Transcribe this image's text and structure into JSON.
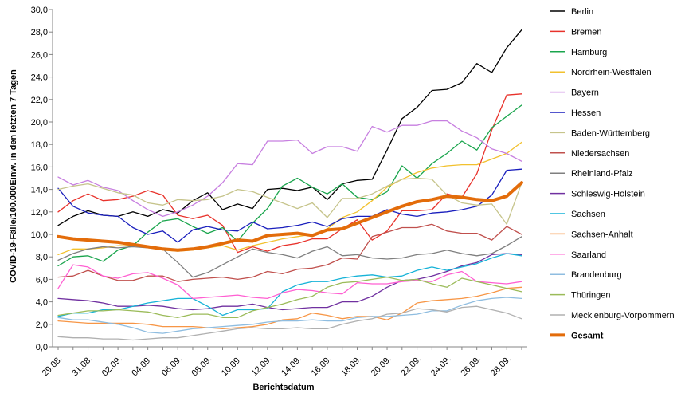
{
  "chart_data": {
    "type": "line",
    "title": "",
    "xlabel": "Berichtsdatum",
    "ylabel": "COVID-19-Fälle/100.000Einw. in den letzten 7 Tagen",
    "ylim": [
      0,
      30
    ],
    "ytick_step": 2,
    "ytick_labels": [
      "0,0",
      "2,0",
      "4,0",
      "6,0",
      "8,0",
      "10,0",
      "12,0",
      "14,0",
      "16,0",
      "18,0",
      "20,0",
      "22,0",
      "24,0",
      "26,0",
      "28,0",
      "30,0"
    ],
    "grid": false,
    "legend_position": "right",
    "categories": [
      "29.08.",
      "30.08.",
      "31.08.",
      "01.09.",
      "02.09.",
      "03.09.",
      "04.09.",
      "05.09.",
      "06.09.",
      "07.09.",
      "08.09.",
      "09.09.",
      "10.09.",
      "11.09.",
      "12.09.",
      "13.09.",
      "14.09.",
      "15.09.",
      "16.09.",
      "17.09.",
      "18.09.",
      "19.09.",
      "20.09.",
      "21.09.",
      "22.09.",
      "23.09.",
      "24.09.",
      "25.09.",
      "26.09.",
      "27.09.",
      "28.09.",
      "29.09."
    ],
    "xtick_labels": [
      "29.08.",
      "31.08.",
      "02.09.",
      "04.09.",
      "06.09.",
      "08.09.",
      "10.09.",
      "12.09.",
      "14.09.",
      "16.09.",
      "18.09.",
      "20.09.",
      "22.09.",
      "24.09.",
      "26.09.",
      "28.09."
    ],
    "series": [
      {
        "name": "Berlin",
        "color": "#000000",
        "values": [
          10.8,
          11.6,
          12.1,
          11.7,
          11.6,
          12.0,
          11.6,
          12.2,
          11.9,
          13.0,
          13.7,
          12.2,
          12.7,
          12.3,
          14.0,
          14.1,
          13.9,
          14.2,
          13.1,
          14.5,
          14.8,
          14.9,
          17.5,
          20.3,
          21.3,
          22.8,
          22.9,
          23.5,
          25.2,
          24.4,
          26.6,
          28.2
        ]
      },
      {
        "name": "Bremen",
        "color": "#e8322b",
        "values": [
          12.0,
          13.0,
          13.6,
          13.0,
          13.1,
          13.4,
          13.9,
          13.5,
          11.7,
          11.4,
          11.7,
          10.8,
          8.4,
          8.9,
          8.5,
          9.0,
          9.2,
          9.6,
          9.6,
          10.5,
          11.3,
          9.5,
          10.3,
          12.1,
          12.1,
          12.2,
          13.6,
          13.3,
          15.4,
          19.3,
          22.4,
          22.5
        ]
      },
      {
        "name": "Hamburg",
        "color": "#1aa54d",
        "values": [
          7.2,
          8.0,
          8.1,
          7.6,
          8.6,
          9.0,
          10.2,
          11.2,
          11.4,
          10.7,
          10.1,
          10.6,
          9.4,
          11.0,
          12.3,
          14.3,
          15.0,
          14.2,
          13.6,
          14.5,
          13.3,
          13.1,
          13.8,
          16.1,
          15.0,
          16.3,
          17.2,
          18.3,
          17.5,
          19.5,
          20.5,
          21.5
        ]
      },
      {
        "name": "Nordrhein-Westfalen",
        "color": "#f2c12e",
        "values": [
          8.2,
          8.7,
          8.7,
          8.8,
          9.0,
          9.0,
          8.9,
          8.6,
          8.5,
          8.6,
          8.8,
          9.0,
          8.6,
          9.0,
          9.3,
          9.6,
          9.8,
          10.0,
          10.5,
          11.5,
          12.0,
          13.0,
          14.2,
          14.9,
          15.5,
          15.9,
          16.1,
          16.2,
          16.2,
          16.7,
          17.2,
          18.2
        ]
      },
      {
        "name": "Bayern",
        "color": "#c77fe0",
        "values": [
          15.1,
          14.4,
          14.8,
          14.2,
          13.9,
          13.0,
          12.2,
          11.6,
          12.0,
          12.6,
          13.4,
          14.6,
          16.3,
          16.2,
          18.3,
          18.3,
          18.4,
          17.2,
          17.8,
          17.8,
          17.4,
          19.6,
          19.1,
          19.7,
          19.7,
          20.1,
          20.1,
          19.2,
          18.6,
          17.6,
          17.2,
          16.5
        ]
      },
      {
        "name": "Hessen",
        "color": "#1a1fbd",
        "values": [
          14.1,
          12.5,
          11.9,
          11.7,
          11.6,
          10.6,
          10.0,
          10.3,
          9.3,
          10.4,
          10.7,
          10.4,
          10.3,
          11.1,
          10.5,
          10.6,
          10.8,
          11.1,
          10.7,
          11.4,
          11.6,
          11.6,
          12.2,
          11.8,
          11.6,
          11.9,
          12.0,
          12.2,
          12.5,
          13.5,
          15.7,
          15.8
        ]
      },
      {
        "name": "Baden-Württemberg",
        "color": "#c6c48b",
        "values": [
          14.0,
          14.3,
          14.5,
          14.1,
          13.7,
          13.5,
          12.8,
          12.6,
          13.1,
          13.0,
          13.1,
          13.4,
          14.0,
          13.8,
          13.3,
          12.8,
          12.3,
          12.8,
          11.5,
          13.2,
          13.2,
          13.6,
          14.3,
          14.9,
          15.0,
          14.9,
          13.5,
          12.8,
          12.6,
          12.7,
          10.9,
          14.6
        ]
      },
      {
        "name": "Niedersachsen",
        "color": "#c0504d",
        "values": [
          6.2,
          6.3,
          6.8,
          6.3,
          5.9,
          5.9,
          6.3,
          6.3,
          5.8,
          6.0,
          6.1,
          6.2,
          6.0,
          6.2,
          6.7,
          6.5,
          6.9,
          7.0,
          7.3,
          7.9,
          7.8,
          9.8,
          10.2,
          10.6,
          10.6,
          10.9,
          10.3,
          10.1,
          10.1,
          9.5,
          10.7,
          10.0
        ]
      },
      {
        "name": "Rheinland-Pfalz",
        "color": "#7f7f7f",
        "values": [
          7.7,
          8.3,
          8.7,
          8.9,
          8.8,
          8.9,
          8.8,
          8.7,
          7.5,
          6.2,
          6.6,
          7.3,
          8.0,
          8.7,
          8.4,
          8.2,
          7.9,
          8.5,
          8.9,
          8.1,
          8.2,
          7.9,
          7.8,
          7.9,
          8.2,
          8.3,
          8.6,
          8.3,
          8.1,
          8.3,
          9.0,
          9.8
        ]
      },
      {
        "name": "Schleswig-Holstein",
        "color": "#7030a0",
        "values": [
          4.3,
          4.2,
          4.1,
          3.9,
          3.6,
          3.6,
          3.7,
          3.6,
          3.4,
          3.3,
          3.4,
          3.6,
          3.6,
          3.8,
          3.5,
          3.3,
          3.4,
          3.5,
          3.5,
          4.0,
          4.0,
          4.5,
          5.3,
          5.9,
          6.0,
          6.3,
          6.7,
          7.2,
          7.5,
          8.2,
          8.3,
          8.2
        ]
      },
      {
        "name": "Sachsen",
        "color": "#17b3d8",
        "values": [
          2.7,
          3.0,
          3.0,
          3.3,
          3.3,
          3.6,
          3.9,
          4.1,
          4.3,
          4.3,
          3.6,
          2.8,
          3.3,
          3.3,
          3.4,
          4.9,
          5.5,
          5.8,
          5.8,
          6.1,
          6.3,
          6.4,
          6.2,
          6.3,
          6.8,
          7.1,
          6.8,
          7.1,
          7.4,
          7.9,
          8.3,
          8.1
        ]
      },
      {
        "name": "Sachsen-Anhalt",
        "color": "#f79646",
        "values": [
          2.3,
          2.2,
          2.1,
          2.1,
          2.1,
          2.1,
          2.0,
          1.8,
          1.8,
          1.8,
          1.7,
          1.6,
          1.7,
          1.8,
          2.0,
          2.4,
          2.5,
          3.0,
          2.8,
          2.5,
          2.7,
          2.7,
          2.4,
          3.0,
          3.9,
          4.1,
          4.2,
          4.3,
          4.5,
          4.8,
          5.2,
          5.3
        ]
      },
      {
        "name": "Saarland",
        "color": "#ff5fd2",
        "values": [
          5.2,
          7.3,
          7.1,
          6.3,
          6.1,
          6.5,
          6.6,
          6.1,
          5.5,
          4.3,
          4.4,
          4.5,
          4.6,
          4.4,
          4.3,
          4.8,
          5.1,
          5.0,
          4.8,
          4.7,
          5.7,
          5.6,
          5.6,
          5.8,
          5.9,
          5.8,
          6.4,
          6.7,
          5.8,
          5.7,
          5.6,
          5.8
        ]
      },
      {
        "name": "Brandenburg",
        "color": "#8fbde0",
        "values": [
          2.6,
          2.4,
          2.4,
          2.2,
          2.0,
          1.7,
          1.3,
          1.2,
          1.4,
          1.6,
          1.7,
          1.8,
          1.9,
          2.0,
          2.2,
          2.3,
          2.3,
          2.4,
          2.3,
          2.3,
          2.6,
          2.7,
          2.7,
          2.8,
          2.9,
          3.2,
          3.2,
          3.7,
          4.1,
          4.3,
          4.4,
          4.3
        ]
      },
      {
        "name": "Thüringen",
        "color": "#9bbb59",
        "values": [
          2.8,
          3.0,
          3.2,
          3.2,
          3.3,
          3.2,
          3.1,
          2.8,
          2.6,
          2.9,
          2.9,
          2.6,
          2.6,
          3.2,
          3.5,
          3.8,
          4.2,
          4.5,
          5.3,
          5.7,
          5.8,
          6.0,
          6.2,
          5.9,
          6.0,
          5.6,
          5.3,
          6.1,
          5.8,
          5.5,
          5.2,
          4.9
        ]
      },
      {
        "name": "Mecklenburg-Vorpommern",
        "color": "#b0b0b0",
        "values": [
          0.9,
          0.8,
          0.8,
          0.7,
          0.7,
          0.6,
          0.7,
          0.8,
          0.8,
          1.0,
          1.2,
          1.4,
          1.6,
          1.7,
          1.6,
          1.6,
          1.7,
          1.6,
          1.6,
          2.0,
          2.3,
          2.5,
          2.9,
          3.0,
          3.4,
          3.3,
          3.1,
          3.5,
          3.6,
          3.3,
          3.0,
          2.5
        ]
      },
      {
        "name": "Gesamt",
        "color": "#e36c0a",
        "width": 4,
        "values": [
          9.8,
          9.6,
          9.5,
          9.4,
          9.3,
          9.1,
          8.9,
          8.7,
          8.6,
          8.7,
          8.9,
          9.2,
          9.5,
          9.4,
          9.9,
          10.0,
          10.1,
          9.9,
          10.4,
          10.5,
          11.0,
          11.5,
          12.0,
          12.5,
          12.9,
          13.1,
          13.4,
          13.3,
          13.1,
          13.0,
          13.4,
          14.6
        ]
      }
    ]
  }
}
